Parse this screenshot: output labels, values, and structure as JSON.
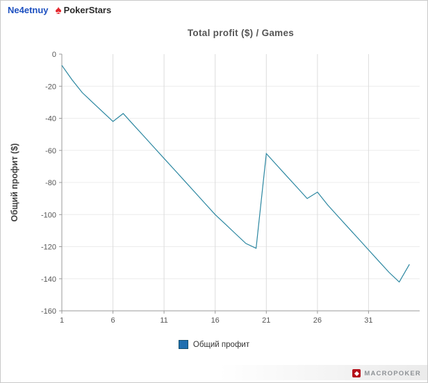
{
  "header": {
    "username": "Ne4etnuy",
    "spade_icon": "♠",
    "site_name": "PokerStars"
  },
  "chart_data": {
    "type": "line",
    "title": "Total profit ($) / Games",
    "xlabel": "",
    "ylabel": "Общий профит ($)",
    "series_color": "#2a86a0",
    "legend": [
      {
        "label": "Общий профит",
        "color": "#1f6fb0"
      }
    ],
    "xlim": [
      1,
      36
    ],
    "ylim": [
      -160,
      0
    ],
    "xticks": [
      1,
      6,
      11,
      16,
      21,
      26,
      31
    ],
    "yticks": [
      0,
      -20,
      -40,
      -60,
      -80,
      -100,
      -120,
      -140,
      -160
    ],
    "grid": true,
    "legend_position": "bottom",
    "x": [
      1,
      2,
      3,
      4,
      5,
      6,
      7,
      8,
      9,
      10,
      11,
      12,
      13,
      14,
      15,
      16,
      17,
      18,
      19,
      20,
      21,
      22,
      23,
      24,
      25,
      26,
      27,
      28,
      29,
      30,
      31,
      32,
      33,
      34,
      35
    ],
    "values": [
      -7,
      -16,
      -24,
      -30,
      -36,
      -42,
      -37,
      -44,
      -51,
      -58,
      -65,
      -72,
      -79,
      -86,
      -93,
      -100,
      -106,
      -112,
      -118,
      -121,
      -62,
      -69,
      -76,
      -83,
      -90,
      -86,
      -94,
      -101,
      -108,
      -115,
      -122,
      -129,
      -136,
      -142,
      -131
    ]
  },
  "footer": {
    "brand": "MACROPOKER"
  }
}
